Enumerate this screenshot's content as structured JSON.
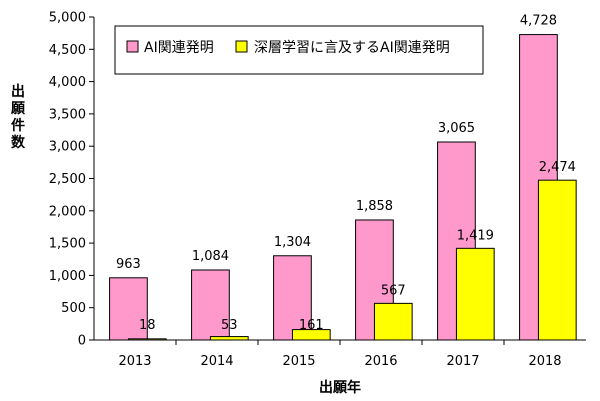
{
  "chart_data": {
    "type": "bar",
    "categories": [
      "2013",
      "2014",
      "2015",
      "2016",
      "2017",
      "2018"
    ],
    "series": [
      {
        "name": "AI関連発明",
        "color": "#FF99CC",
        "values": [
          963,
          1084,
          1304,
          1858,
          3065,
          4728
        ],
        "value_labels": [
          "963",
          "1,084",
          "1,304",
          "1,858",
          "3,065",
          "4,728"
        ]
      },
      {
        "name": "深層学習に言及するAI関連発明",
        "color": "#FFFF00",
        "values": [
          18,
          53,
          161,
          567,
          1419,
          2474
        ],
        "value_labels": [
          "18",
          "53",
          "161",
          "567",
          "1,419",
          "2,474"
        ]
      }
    ],
    "xlabel": "出願年",
    "ylabel": "出願件数",
    "ylim": [
      0,
      5000
    ],
    "yticks": [
      0,
      500,
      1000,
      1500,
      2000,
      2500,
      3000,
      3500,
      4000,
      4500,
      5000
    ],
    "ytick_labels": [
      "0",
      "500",
      "1,000",
      "1,500",
      "2,000",
      "2,500",
      "3,000",
      "3,500",
      "4,000",
      "4,500",
      "5,000"
    ],
    "legend_position": "top-left",
    "grid": false
  }
}
